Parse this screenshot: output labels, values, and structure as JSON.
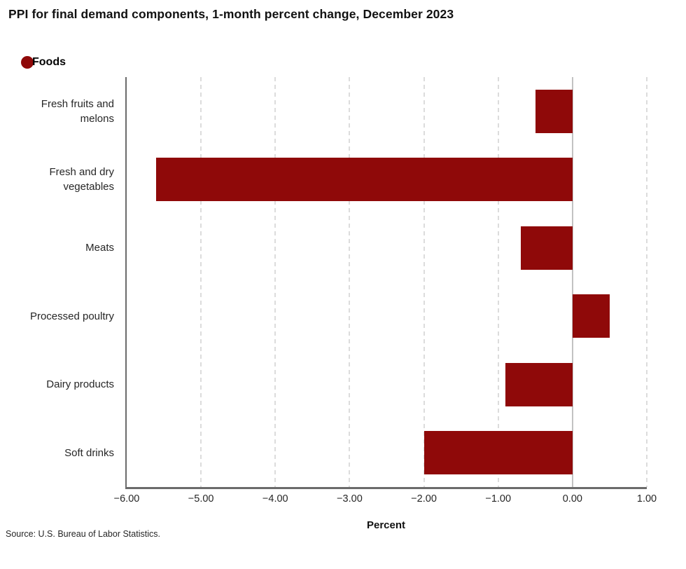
{
  "title": "PPI for final demand components, 1-month percent change, December 2023",
  "legend": {
    "label": "Foods",
    "marker_color": "#8F0909"
  },
  "source": "Source: U.S. Bureau of Labor Statistics.",
  "chart_data": {
    "type": "bar",
    "orientation": "horizontal",
    "series_name": "Foods",
    "categories": [
      "Fresh fruits and melons",
      "Fresh and dry vegetables",
      "Meats",
      "Processed poultry",
      "Dairy products",
      "Soft drinks"
    ],
    "values": [
      -0.5,
      -5.6,
      -0.7,
      0.5,
      -0.9,
      -2.0
    ],
    "xlabel": "Percent",
    "xlim": [
      -6.0,
      1.0
    ],
    "x_tick_values": [
      -6,
      -5,
      -4,
      -3,
      -2,
      -1,
      0,
      1
    ],
    "x_tick_labels": [
      "−6.00",
      "−5.00",
      "−4.00",
      "−3.00",
      "−2.00",
      "−1.00",
      "0.00",
      "1.00"
    ],
    "bar_color": "#8F0909",
    "zero_line_color": "#c2c2c2",
    "gridline_color": "#dcdcdc",
    "axis_color": "#6b6b6b",
    "grid": "vertical-dashed",
    "legend_position": "top-left"
  }
}
